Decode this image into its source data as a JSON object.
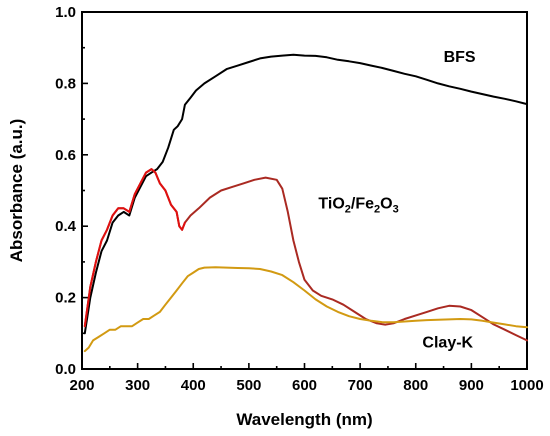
{
  "chart_data": {
    "type": "line",
    "xlabel": "Wavelength (nm)",
    "ylabel": "Absorbance (a.u.)",
    "xlim": [
      200,
      1000
    ],
    "ylim": [
      0.0,
      1.0
    ],
    "xticks": [
      "200",
      "300",
      "400",
      "500",
      "600",
      "700",
      "800",
      "900",
      "1000"
    ],
    "yticks": [
      "0.0",
      "0.2",
      "0.4",
      "0.6",
      "0.8",
      "1.0"
    ],
    "grid": false,
    "series": [
      {
        "name": "BFS",
        "color": "#000000",
        "label_at": [
          850,
          0.86
        ],
        "points": [
          [
            205,
            0.1
          ],
          [
            215,
            0.2
          ],
          [
            225,
            0.27
          ],
          [
            235,
            0.33
          ],
          [
            245,
            0.36
          ],
          [
            255,
            0.41
          ],
          [
            265,
            0.43
          ],
          [
            275,
            0.44
          ],
          [
            285,
            0.43
          ],
          [
            295,
            0.48
          ],
          [
            305,
            0.51
          ],
          [
            315,
            0.54
          ],
          [
            325,
            0.55
          ],
          [
            335,
            0.56
          ],
          [
            345,
            0.58
          ],
          [
            355,
            0.62
          ],
          [
            365,
            0.67
          ],
          [
            372,
            0.68
          ],
          [
            380,
            0.7
          ],
          [
            385,
            0.74
          ],
          [
            395,
            0.76
          ],
          [
            405,
            0.78
          ],
          [
            420,
            0.8
          ],
          [
            440,
            0.82
          ],
          [
            460,
            0.84
          ],
          [
            480,
            0.85
          ],
          [
            500,
            0.86
          ],
          [
            520,
            0.87
          ],
          [
            540,
            0.875
          ],
          [
            560,
            0.878
          ],
          [
            580,
            0.88
          ],
          [
            600,
            0.878
          ],
          [
            620,
            0.877
          ],
          [
            640,
            0.873
          ],
          [
            660,
            0.866
          ],
          [
            680,
            0.862
          ],
          [
            700,
            0.857
          ],
          [
            720,
            0.85
          ],
          [
            740,
            0.843
          ],
          [
            760,
            0.835
          ],
          [
            780,
            0.827
          ],
          [
            800,
            0.82
          ],
          [
            820,
            0.81
          ],
          [
            840,
            0.8
          ],
          [
            860,
            0.792
          ],
          [
            880,
            0.785
          ],
          [
            900,
            0.777
          ],
          [
            920,
            0.77
          ],
          [
            940,
            0.763
          ],
          [
            960,
            0.757
          ],
          [
            980,
            0.75
          ],
          [
            1000,
            0.742
          ]
        ]
      },
      {
        "name": "TiO2/Fe2O3",
        "label": "TiO",
        "label_sub1": "2",
        "label_mid": "/Fe",
        "label_sub2": "2",
        "label_end": "O",
        "label_sub3": "3",
        "color": "#aa2a22",
        "color_low": "#e01010",
        "label_at": [
          625,
          0.45
        ],
        "points": [
          [
            205,
            0.12
          ],
          [
            215,
            0.23
          ],
          [
            225,
            0.3
          ],
          [
            235,
            0.36
          ],
          [
            245,
            0.39
          ],
          [
            255,
            0.43
          ],
          [
            265,
            0.45
          ],
          [
            275,
            0.45
          ],
          [
            285,
            0.44
          ],
          [
            295,
            0.49
          ],
          [
            305,
            0.52
          ],
          [
            315,
            0.55
          ],
          [
            325,
            0.56
          ],
          [
            332,
            0.55
          ],
          [
            340,
            0.52
          ],
          [
            350,
            0.5
          ],
          [
            360,
            0.46
          ],
          [
            370,
            0.44
          ],
          [
            375,
            0.4
          ],
          [
            380,
            0.39
          ],
          [
            385,
            0.41
          ],
          [
            395,
            0.43
          ],
          [
            410,
            0.45
          ],
          [
            430,
            0.48
          ],
          [
            450,
            0.5
          ],
          [
            470,
            0.51
          ],
          [
            490,
            0.52
          ],
          [
            510,
            0.53
          ],
          [
            530,
            0.536
          ],
          [
            550,
            0.53
          ],
          [
            560,
            0.505
          ],
          [
            570,
            0.44
          ],
          [
            580,
            0.36
          ],
          [
            590,
            0.3
          ],
          [
            600,
            0.25
          ],
          [
            615,
            0.22
          ],
          [
            630,
            0.205
          ],
          [
            650,
            0.195
          ],
          [
            670,
            0.18
          ],
          [
            690,
            0.16
          ],
          [
            710,
            0.14
          ],
          [
            730,
            0.128
          ],
          [
            745,
            0.124
          ],
          [
            760,
            0.128
          ],
          [
            780,
            0.14
          ],
          [
            800,
            0.15
          ],
          [
            820,
            0.16
          ],
          [
            840,
            0.17
          ],
          [
            860,
            0.177
          ],
          [
            880,
            0.175
          ],
          [
            900,
            0.165
          ],
          [
            920,
            0.145
          ],
          [
            940,
            0.125
          ],
          [
            960,
            0.11
          ],
          [
            980,
            0.095
          ],
          [
            1000,
            0.08
          ]
        ]
      },
      {
        "name": "Clay-K",
        "color": "#d29a12",
        "label_at": [
          812,
          0.06
        ],
        "points": [
          [
            205,
            0.05
          ],
          [
            212,
            0.06
          ],
          [
            220,
            0.08
          ],
          [
            230,
            0.09
          ],
          [
            240,
            0.1
          ],
          [
            250,
            0.11
          ],
          [
            260,
            0.11
          ],
          [
            270,
            0.12
          ],
          [
            280,
            0.12
          ],
          [
            290,
            0.12
          ],
          [
            300,
            0.13
          ],
          [
            310,
            0.14
          ],
          [
            320,
            0.14
          ],
          [
            330,
            0.15
          ],
          [
            340,
            0.16
          ],
          [
            350,
            0.18
          ],
          [
            360,
            0.2
          ],
          [
            370,
            0.22
          ],
          [
            380,
            0.24
          ],
          [
            390,
            0.26
          ],
          [
            400,
            0.27
          ],
          [
            410,
            0.28
          ],
          [
            420,
            0.284
          ],
          [
            440,
            0.285
          ],
          [
            460,
            0.284
          ],
          [
            480,
            0.283
          ],
          [
            500,
            0.282
          ],
          [
            520,
            0.28
          ],
          [
            540,
            0.273
          ],
          [
            560,
            0.263
          ],
          [
            580,
            0.243
          ],
          [
            600,
            0.22
          ],
          [
            620,
            0.195
          ],
          [
            640,
            0.175
          ],
          [
            660,
            0.16
          ],
          [
            680,
            0.148
          ],
          [
            700,
            0.14
          ],
          [
            720,
            0.135
          ],
          [
            740,
            0.131
          ],
          [
            760,
            0.131
          ],
          [
            780,
            0.133
          ],
          [
            800,
            0.135
          ],
          [
            820,
            0.137
          ],
          [
            840,
            0.138
          ],
          [
            860,
            0.139
          ],
          [
            880,
            0.14
          ],
          [
            900,
            0.139
          ],
          [
            920,
            0.135
          ],
          [
            940,
            0.13
          ],
          [
            960,
            0.125
          ],
          [
            980,
            0.12
          ],
          [
            1000,
            0.117
          ]
        ]
      }
    ]
  }
}
